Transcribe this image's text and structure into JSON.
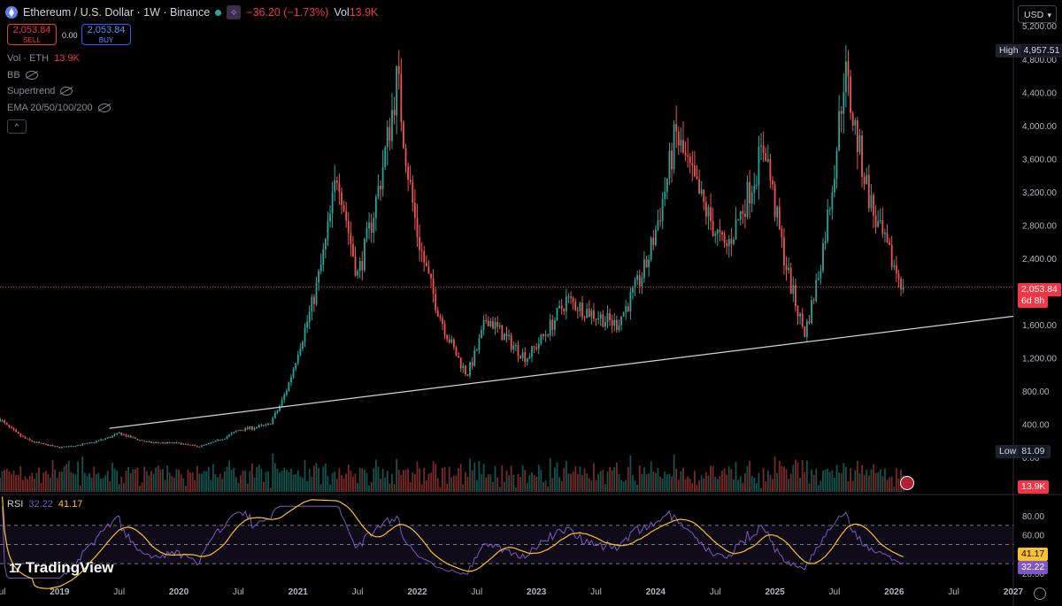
{
  "header": {
    "title": "Ethereum / U.S. Dollar · 1W · Binance",
    "change": "−36.20 (−1.73%)",
    "vol_label": "Vol",
    "vol_value": "13.9K"
  },
  "trade": {
    "sell_price": "2,053.84",
    "sell_label": "SELL",
    "spread": "0.00",
    "buy_price": "2,053.84",
    "buy_label": "BUY"
  },
  "indicators": {
    "vol_label": "Vol · ETH",
    "vol_value": "13.9K",
    "bb": "BB",
    "supertrend": "Supertrend",
    "ema": "EMA 20/50/100/200",
    "collapse": "^"
  },
  "currency": "USD",
  "markers": {
    "high_label": "High",
    "high_value": "4,957.51",
    "low_label": "Low",
    "low_value": "81.09",
    "last_price": "2,053.84",
    "countdown": "6d 8h",
    "volume_tag": "13.9K"
  },
  "rsi": {
    "label": "RSI",
    "value1": "32.22",
    "value2": "41.17",
    "axis": [
      "80.00",
      "60.00",
      "40.00",
      "20.00"
    ]
  },
  "brand": "TradingView",
  "colors": {
    "up": "#26a69a",
    "down": "#ef5350",
    "rsi": "#7e57c2",
    "rsi_ma": "#fbc02d",
    "trendline": "#d1d4dc",
    "price_line": "#f23645"
  },
  "chart_data": {
    "type": "candlestick",
    "title": "Ethereum / U.S. Dollar · 1W · Binance",
    "interval": "1W",
    "y_axis": [
      "5,200.00",
      "4,800.00",
      "4,400.00",
      "4,000.00",
      "3,600.00",
      "3,200.00",
      "2,800.00",
      "2,400.00",
      "1,600.00",
      "1,200.00",
      "800.00",
      "400.00",
      "0.00"
    ],
    "ylim": [
      0,
      5200
    ],
    "x_axis": [
      "Jul",
      "2019",
      "Jul",
      "2020",
      "Jul",
      "2021",
      "Jul",
      "2022",
      "Jul",
      "2023",
      "Jul",
      "2024",
      "Jul",
      "2025",
      "Jul",
      "2026",
      "Jul",
      "2027"
    ],
    "x_range": [
      "2018-07",
      "2027-01"
    ],
    "grid": false,
    "approx_closes": [
      {
        "t": "2018-07",
        "c": 460
      },
      {
        "t": "2018-10",
        "c": 200
      },
      {
        "t": "2019-01",
        "c": 120
      },
      {
        "t": "2019-04",
        "c": 170
      },
      {
        "t": "2019-07",
        "c": 290
      },
      {
        "t": "2019-10",
        "c": 180
      },
      {
        "t": "2020-01",
        "c": 170
      },
      {
        "t": "2020-03",
        "c": 130
      },
      {
        "t": "2020-07",
        "c": 330
      },
      {
        "t": "2020-10",
        "c": 390
      },
      {
        "t": "2021-01",
        "c": 1300
      },
      {
        "t": "2021-05",
        "c": 3500
      },
      {
        "t": "2021-07",
        "c": 2200
      },
      {
        "t": "2021-11",
        "c": 4600
      },
      {
        "t": "2022-01",
        "c": 2700
      },
      {
        "t": "2022-06",
        "c": 1000
      },
      {
        "t": "2022-08",
        "c": 1700
      },
      {
        "t": "2022-12",
        "c": 1200
      },
      {
        "t": "2023-04",
        "c": 1900
      },
      {
        "t": "2023-09",
        "c": 1600
      },
      {
        "t": "2023-12",
        "c": 2300
      },
      {
        "t": "2024-03",
        "c": 3900
      },
      {
        "t": "2024-08",
        "c": 2500
      },
      {
        "t": "2024-12",
        "c": 3800
      },
      {
        "t": "2025-04",
        "c": 1500
      },
      {
        "t": "2025-08",
        "c": 4700
      },
      {
        "t": "2025-11",
        "c": 2900
      },
      {
        "t": "2026-02",
        "c": 2053.84
      }
    ],
    "trendline": [
      {
        "t": "2019-06",
        "v": 350
      },
      {
        "t": "2027-01",
        "v": 1700
      }
    ],
    "high": 4957.51,
    "last": 2053.84
  }
}
